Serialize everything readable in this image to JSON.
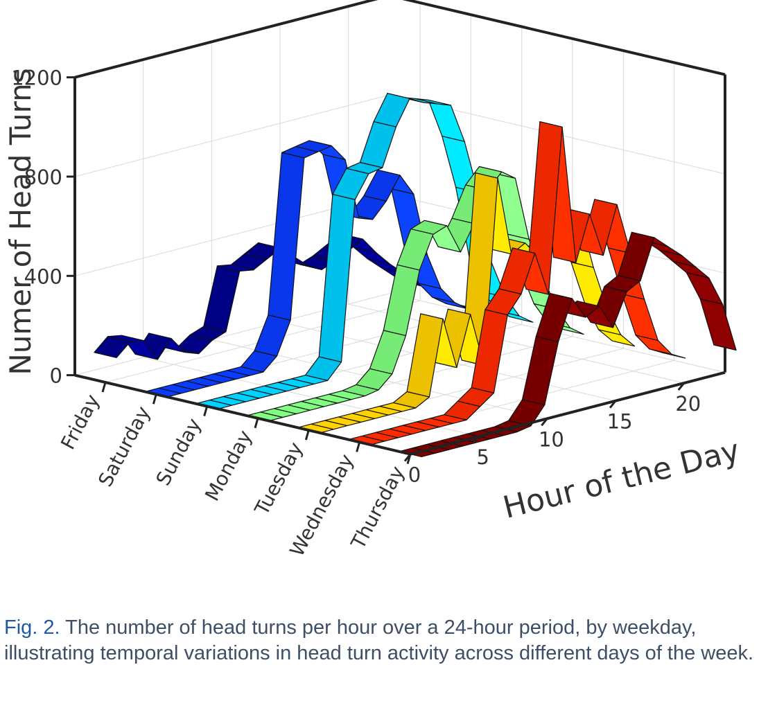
{
  "chart_data": {
    "type": "3d-ribbon",
    "ylabel": "Numer of Head Turns",
    "xlabel": "Hour of the Day",
    "z_ticks": [
      "0",
      "400",
      "800",
      "1200"
    ],
    "zlim": [
      0,
      1200
    ],
    "hour_ticks": [
      "0",
      "5",
      "10",
      "15",
      "20"
    ],
    "hour_range": [
      0,
      23
    ],
    "grid": true,
    "series": [
      {
        "name": "Friday",
        "color": "#00008f",
        "values": [
          110,
          160,
          150,
          60,
          130,
          60,
          40,
          80,
          100,
          330,
          320,
          350,
          380,
          330,
          280,
          250,
          270,
          300,
          330,
          260,
          200,
          150,
          100,
          60
        ]
      },
      {
        "name": "Saturday",
        "color": "#0a3cff",
        "values": [
          0,
          0,
          0,
          0,
          0,
          0,
          0,
          0,
          50,
          180,
          820,
          830,
          840,
          770,
          520,
          500,
          560,
          650,
          560,
          300,
          150,
          80,
          40,
          20
        ]
      },
      {
        "name": "Sunday",
        "color": "#00d2ff",
        "values": [
          0,
          0,
          0,
          0,
          0,
          0,
          0,
          0,
          0,
          60,
          700,
          790,
          800,
          950,
          1050,
          1020,
          1000,
          980,
          820,
          600,
          300,
          150,
          60,
          20
        ]
      },
      {
        "name": "Monday",
        "color": "#80ff80",
        "values": [
          0,
          0,
          0,
          0,
          0,
          0,
          0,
          0,
          10,
          60,
          200,
          450,
          580,
          600,
          480,
          580,
          700,
          760,
          720,
          460,
          300,
          150,
          60,
          20
        ]
      },
      {
        "name": "Tuesday",
        "color": "#ffd200",
        "values": [
          0,
          0,
          0,
          0,
          0,
          0,
          0,
          0,
          30,
          330,
          120,
          320,
          100,
          840,
          520,
          550,
          480,
          490,
          530,
          600,
          380,
          200,
          80,
          20
        ]
      },
      {
        "name": "Wednesday",
        "color": "#ff2b00",
        "values": [
          0,
          0,
          0,
          0,
          0,
          0,
          0,
          0,
          40,
          80,
          380,
          450,
          600,
          420,
          1080,
          520,
          700,
          520,
          710,
          500,
          300,
          120,
          50,
          20
        ]
      },
      {
        "name": "Thursday",
        "color": "#800000",
        "values": [
          0,
          0,
          0,
          0,
          0,
          0,
          0,
          0,
          10,
          80,
          320,
          480,
          390,
          420,
          320,
          450,
          480,
          640,
          590,
          540,
          480,
          420,
          300,
          100
        ]
      }
    ]
  },
  "caption": {
    "label": "Fig. 2.",
    "text": " The number of head turns per hour over a 24-hour period, by weekday, illustrating temporal variations in head turn activity across different days of the week."
  }
}
